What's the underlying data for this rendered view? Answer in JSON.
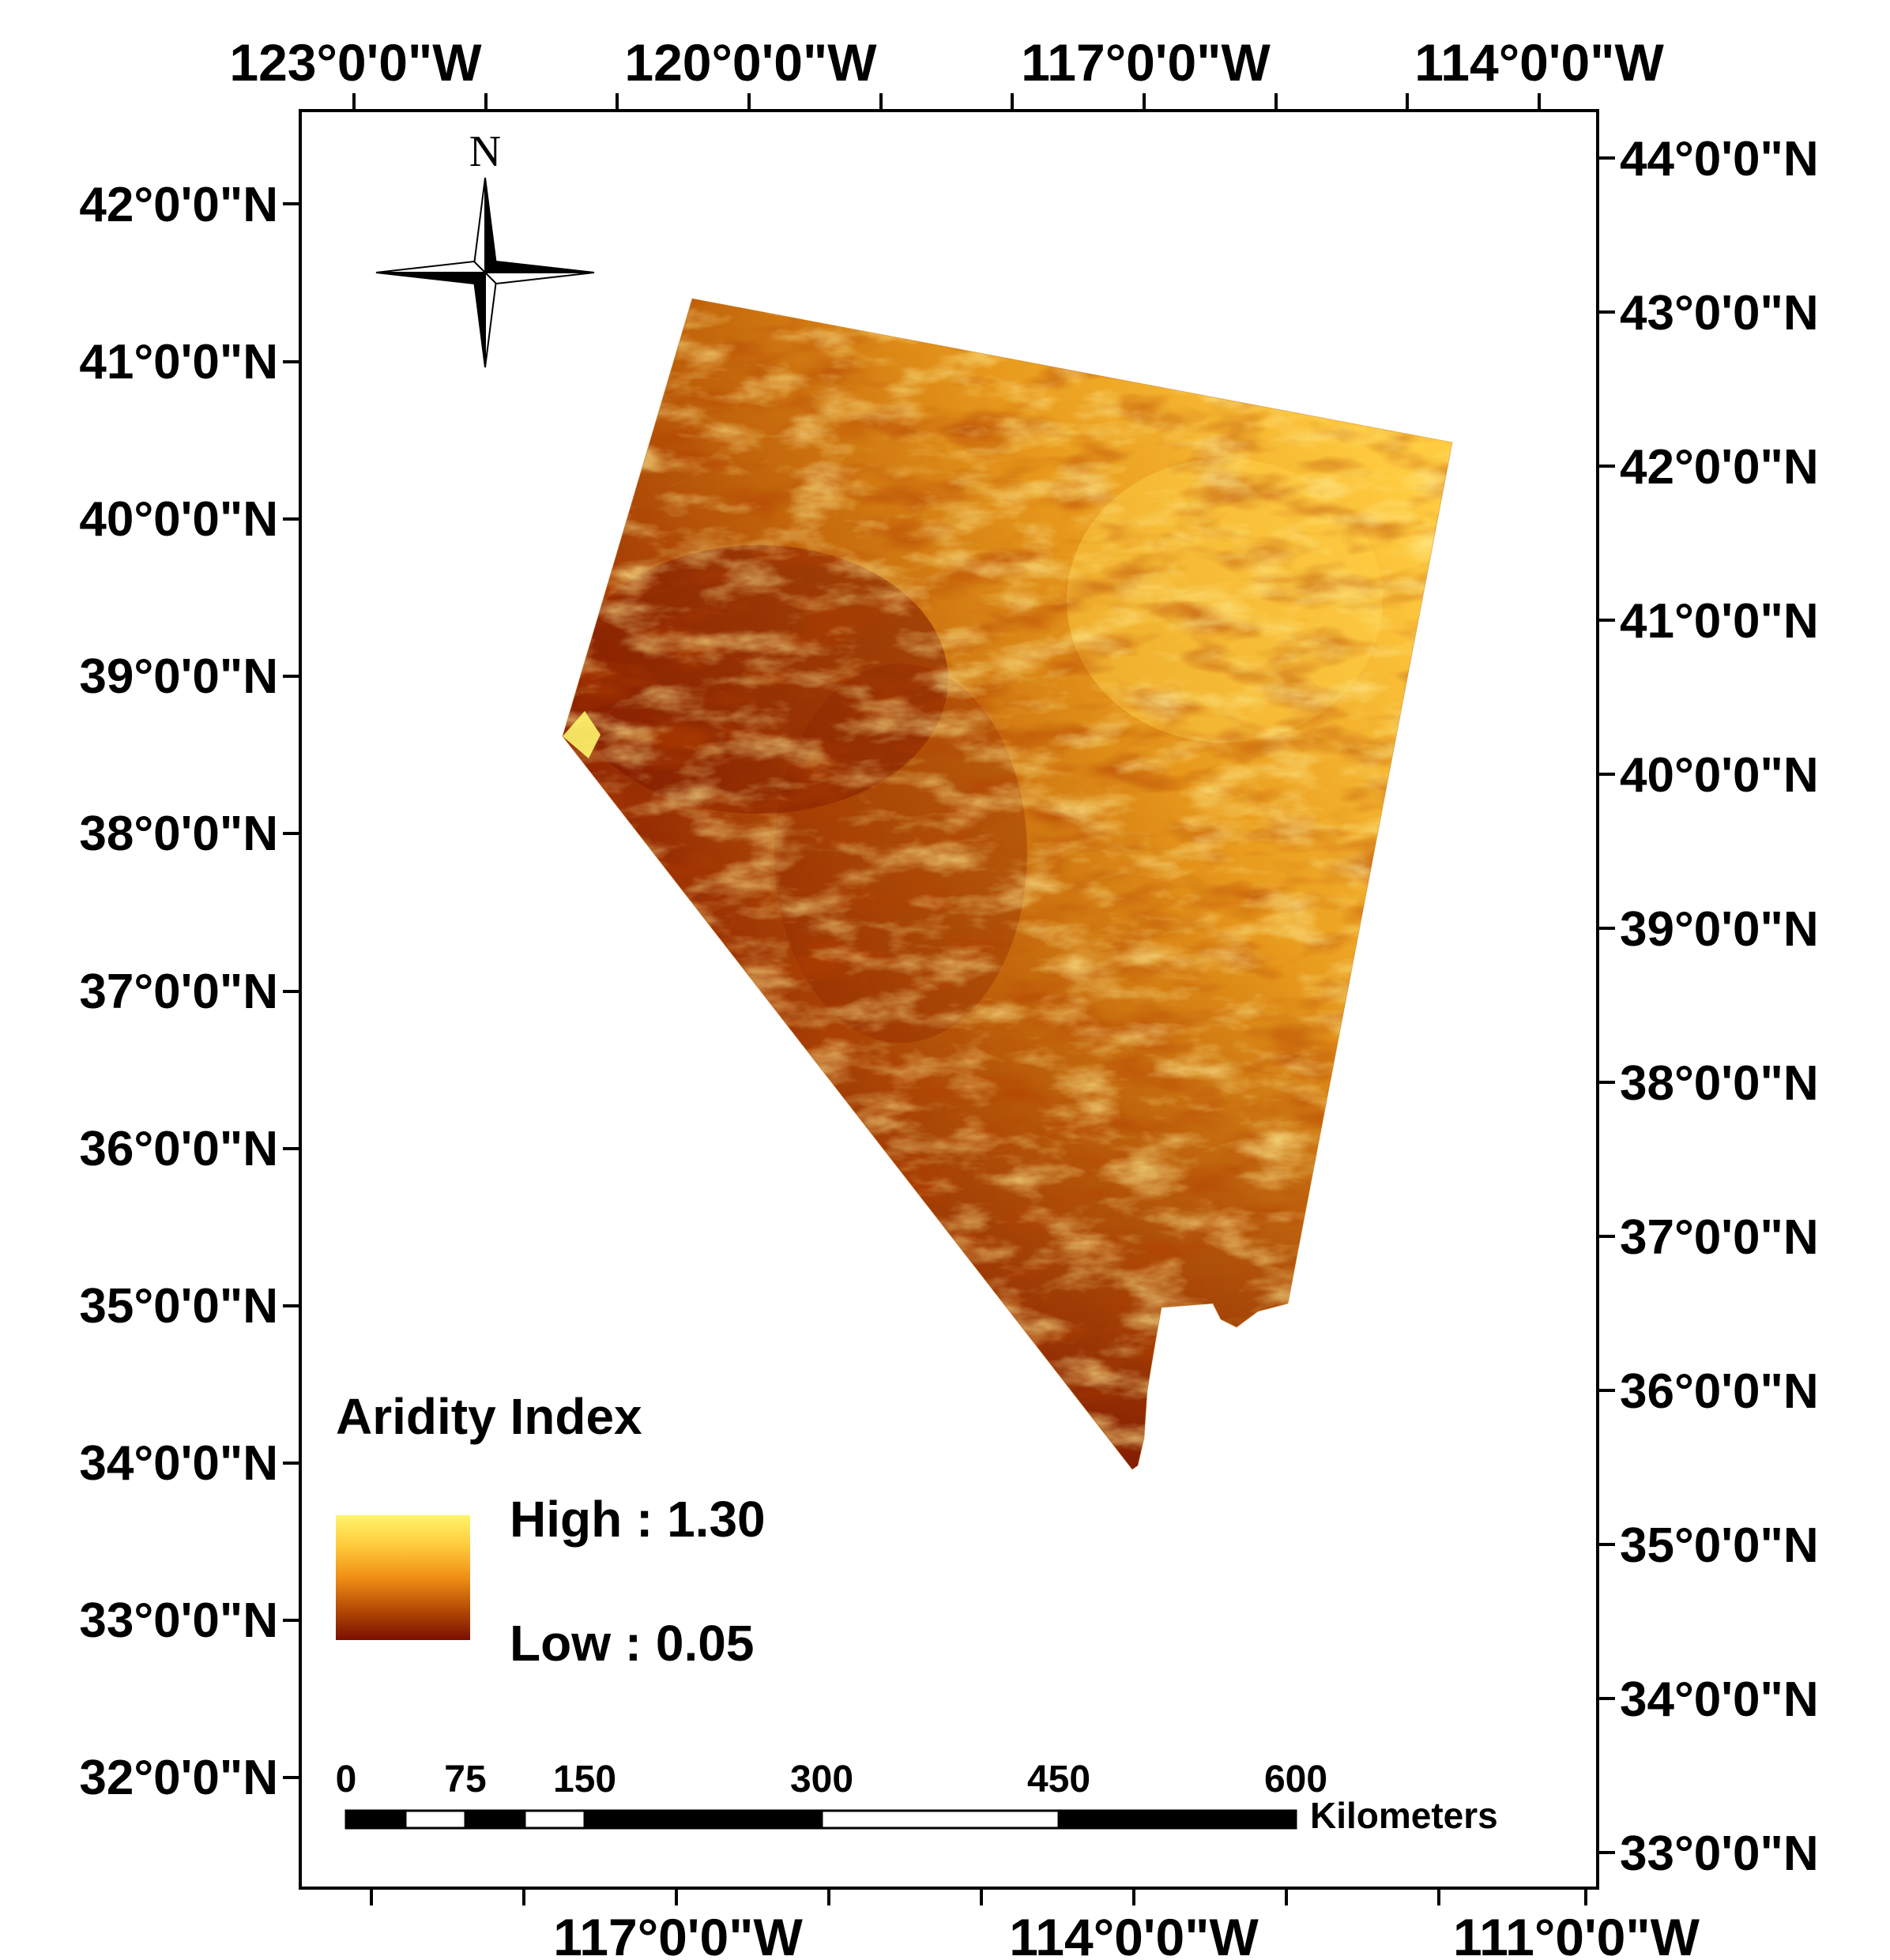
{
  "axes": {
    "top_longitude_labels": [
      "123°0'0\"W",
      "120°0'0\"W",
      "117°0'0\"W",
      "114°0'0\"W"
    ],
    "bottom_longitude_labels": [
      "117°0'0\"W",
      "114°0'0\"W",
      "111°0'0\"W"
    ],
    "left_latitude_labels": [
      "42°0'0\"N",
      "41°0'0\"N",
      "40°0'0\"N",
      "39°0'0\"N",
      "38°0'0\"N",
      "37°0'0\"N",
      "36°0'0\"N",
      "35°0'0\"N",
      "34°0'0\"N",
      "33°0'0\"N",
      "32°0'0\"N"
    ],
    "right_latitude_labels": [
      "44°0'0\"N",
      "43°0'0\"N",
      "42°0'0\"N",
      "41°0'0\"N",
      "40°0'0\"N",
      "39°0'0\"N",
      "38°0'0\"N",
      "37°0'0\"N",
      "36°0'0\"N",
      "35°0'0\"N",
      "34°0'0\"N",
      "33°0'0\"N"
    ]
  },
  "north_arrow": {
    "label": "N",
    "icon": "compass-rose-icon"
  },
  "legend": {
    "title": "Aridity Index",
    "high_label": "High : 1.30",
    "low_label": "Low : 0.05",
    "high_value": 1.3,
    "low_value": 0.05,
    "colors": [
      "#fff56b",
      "#ffc93a",
      "#f59a18",
      "#d9700d",
      "#a53e04",
      "#7a0f00"
    ]
  },
  "scale_bar": {
    "tick_labels": [
      "0",
      "75",
      "150",
      "300",
      "450",
      "600"
    ],
    "unit": "Kilometers"
  },
  "colors": {
    "frame": "#000000",
    "high": "#fff56b",
    "low": "#7a0f00"
  }
}
